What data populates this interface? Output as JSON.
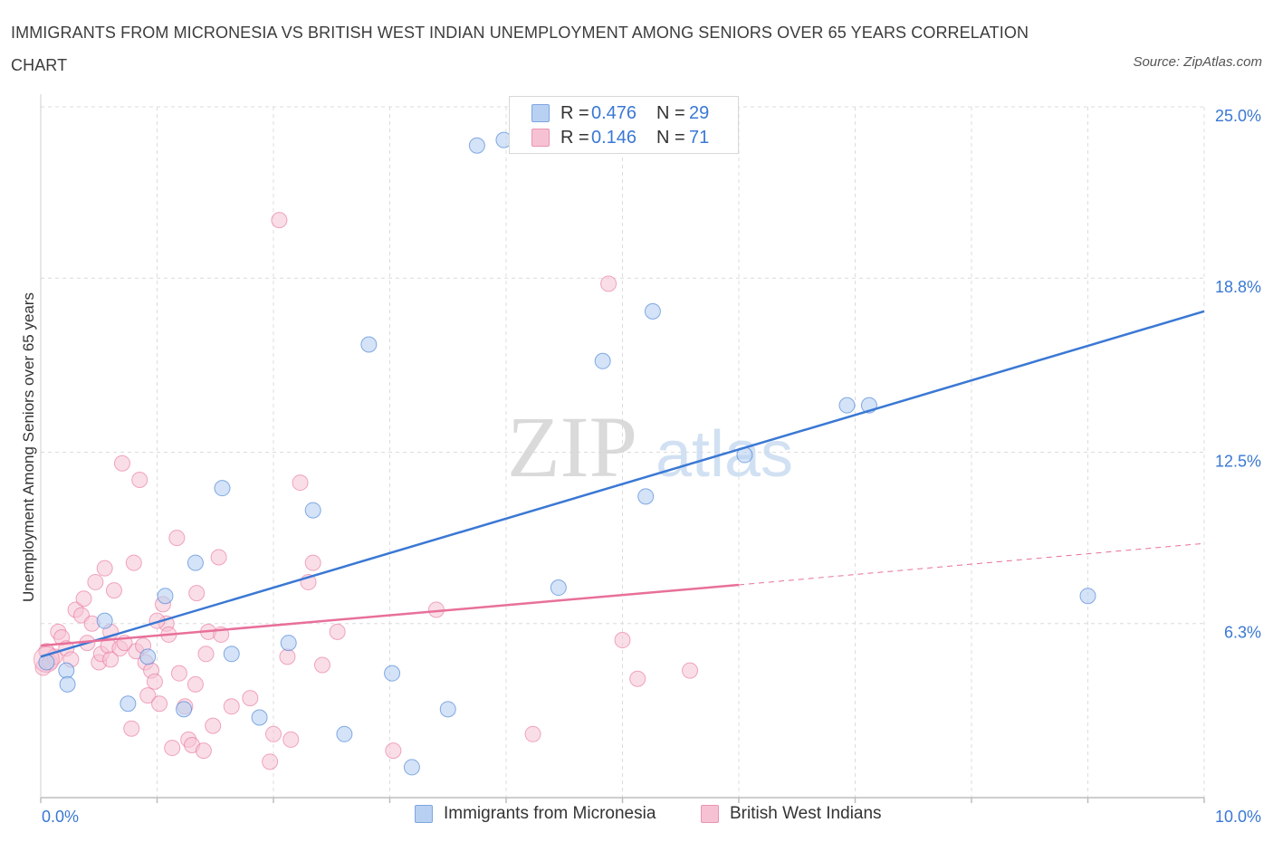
{
  "header": {
    "title": "IMMIGRANTS FROM MICRONESIA VS BRITISH WEST INDIAN UNEMPLOYMENT AMONG SENIORS OVER 65 YEARS CORRELATION CHART",
    "source": "Source: ZipAtlas.com"
  },
  "watermark": {
    "zip": "ZIP",
    "atlas": "atlas"
  },
  "legend": {
    "rows": [
      {
        "r_label": "R =",
        "r_value": "0.476",
        "n_label": "N =",
        "n_value": "29"
      },
      {
        "r_label": "R =",
        "r_value": "0.146",
        "n_label": "N =",
        "n_value": "71"
      }
    ]
  },
  "bottom_legend": {
    "micronesia": "Immigrants from Micronesia",
    "bwi": "British West Indians"
  },
  "colors": {
    "blue": "#3a78d4",
    "blue_fill": "#b8d0f2",
    "pink": "#e8709a",
    "pink_fill": "#f6c2d3",
    "grid": "#dcdcdc"
  },
  "chart_data": {
    "type": "scatter",
    "title": "IMMIGRANTS FROM MICRONESIA VS BRITISH WEST INDIAN UNEMPLOYMENT AMONG SENIORS OVER 65 YEARS CORRELATION CHART",
    "xlabel": "",
    "ylabel": "Unemployment Among Seniors over 65 years",
    "xlim": [
      0,
      10
    ],
    "ylim": [
      0,
      25
    ],
    "x_tick_labels": [
      "0.0%",
      "10.0%"
    ],
    "y_ticks": [
      6.3,
      12.5,
      18.8,
      25.0
    ],
    "y_tick_labels": [
      "6.3%",
      "12.5%",
      "18.8%",
      "25.0%"
    ],
    "grid": true,
    "legend_position": "top-center",
    "series": [
      {
        "name": "Immigrants from Micronesia",
        "color": "#3a78d4",
        "points": [
          [
            0.05,
            4.9
          ],
          [
            0.22,
            4.6
          ],
          [
            0.23,
            4.1
          ],
          [
            0.55,
            6.4
          ],
          [
            0.75,
            3.4
          ],
          [
            0.92,
            5.1
          ],
          [
            1.07,
            7.3
          ],
          [
            1.23,
            3.2
          ],
          [
            1.33,
            8.5
          ],
          [
            1.56,
            11.2
          ],
          [
            1.64,
            5.2
          ],
          [
            1.88,
            2.9
          ],
          [
            2.13,
            5.6
          ],
          [
            2.34,
            10.4
          ],
          [
            2.61,
            2.3
          ],
          [
            2.82,
            16.4
          ],
          [
            3.02,
            4.5
          ],
          [
            3.19,
            1.1
          ],
          [
            3.5,
            3.2
          ],
          [
            3.75,
            23.6
          ],
          [
            3.98,
            23.8
          ],
          [
            4.45,
            7.6
          ],
          [
            4.83,
            15.8
          ],
          [
            5.2,
            10.9
          ],
          [
            5.26,
            17.6
          ],
          [
            6.05,
            12.4
          ],
          [
            6.93,
            14.2
          ],
          [
            7.12,
            14.2
          ],
          [
            9.0,
            7.3
          ]
        ],
        "trend": {
          "x": [
            0.0,
            10.0
          ],
          "y": [
            5.1,
            17.6
          ]
        }
      },
      {
        "name": "British West Indians",
        "color": "#e8709a",
        "points": [
          [
            0.02,
            4.7
          ],
          [
            0.05,
            5.3
          ],
          [
            0.08,
            4.9
          ],
          [
            0.12,
            5.1
          ],
          [
            0.15,
            6.0
          ],
          [
            0.18,
            5.8
          ],
          [
            0.22,
            5.4
          ],
          [
            0.26,
            5.0
          ],
          [
            0.3,
            6.8
          ],
          [
            0.35,
            6.6
          ],
          [
            0.37,
            7.2
          ],
          [
            0.4,
            5.6
          ],
          [
            0.44,
            6.3
          ],
          [
            0.47,
            7.8
          ],
          [
            0.5,
            4.9
          ],
          [
            0.52,
            5.2
          ],
          [
            0.55,
            8.3
          ],
          [
            0.58,
            5.5
          ],
          [
            0.6,
            6.0
          ],
          [
            0.63,
            7.5
          ],
          [
            0.68,
            5.4
          ],
          [
            0.72,
            5.6
          ],
          [
            0.78,
            2.5
          ],
          [
            0.82,
            5.3
          ],
          [
            0.8,
            8.5
          ],
          [
            0.85,
            11.5
          ],
          [
            0.88,
            5.5
          ],
          [
            0.9,
            4.9
          ],
          [
            0.92,
            3.7
          ],
          [
            0.95,
            4.6
          ],
          [
            0.98,
            4.2
          ],
          [
            1.02,
            3.4
          ],
          [
            1.05,
            7.0
          ],
          [
            1.08,
            6.3
          ],
          [
            1.1,
            5.9
          ],
          [
            1.13,
            1.8
          ],
          [
            1.17,
            9.4
          ],
          [
            1.19,
            4.5
          ],
          [
            1.24,
            3.3
          ],
          [
            1.27,
            2.1
          ],
          [
            1.3,
            1.9
          ],
          [
            1.33,
            4.1
          ],
          [
            1.34,
            7.4
          ],
          [
            1.4,
            1.7
          ],
          [
            1.42,
            5.2
          ],
          [
            1.44,
            6.0
          ],
          [
            1.48,
            2.6
          ],
          [
            1.53,
            8.7
          ],
          [
            1.55,
            5.9
          ],
          [
            1.64,
            3.3
          ],
          [
            1.8,
            3.6
          ],
          [
            1.97,
            1.3
          ],
          [
            2.05,
            20.9
          ],
          [
            2.12,
            5.1
          ],
          [
            2.15,
            2.1
          ],
          [
            2.23,
            11.4
          ],
          [
            2.3,
            7.8
          ],
          [
            2.34,
            8.5
          ],
          [
            2.42,
            4.8
          ],
          [
            2.55,
            6.0
          ],
          [
            2.0,
            2.3
          ],
          [
            3.03,
            1.7
          ],
          [
            3.4,
            6.8
          ],
          [
            4.23,
            2.3
          ],
          [
            4.88,
            18.6
          ],
          [
            5.0,
            5.7
          ],
          [
            5.13,
            4.3
          ],
          [
            5.58,
            4.6
          ],
          [
            0.7,
            12.1
          ],
          [
            0.6,
            5.0
          ],
          [
            1.0,
            6.4
          ]
        ],
        "trend": {
          "x": [
            0.0,
            6.0
          ],
          "y": [
            5.5,
            7.7
          ]
        },
        "trend_extension": {
          "x": [
            6.0,
            10.0
          ],
          "y": [
            7.7,
            9.2
          ]
        }
      }
    ]
  }
}
